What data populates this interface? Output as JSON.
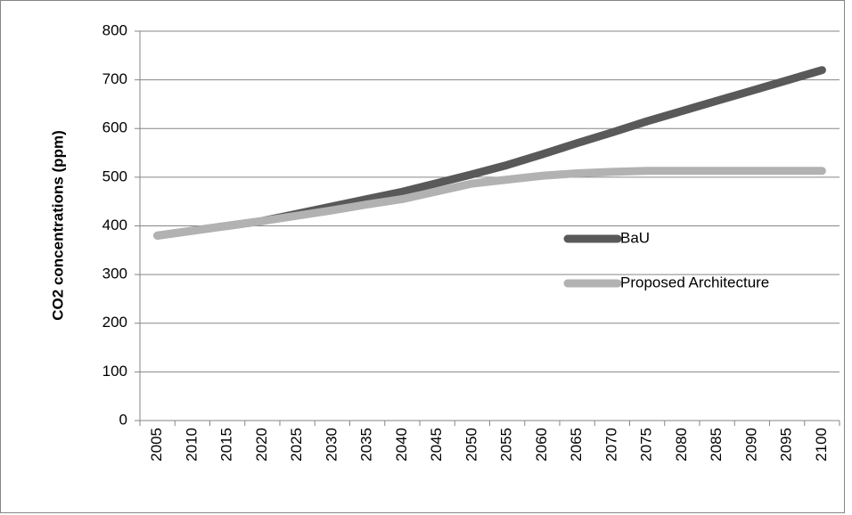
{
  "chart_data": {
    "type": "line",
    "ylabel": "CO2 concentrations  (ppm)",
    "categories": [
      "2005",
      "2010",
      "2015",
      "2020",
      "2025",
      "2030",
      "2035",
      "2040",
      "2045",
      "2050",
      "2055",
      "2060",
      "2065",
      "2070",
      "2075",
      "2080",
      "2085",
      "2090",
      "2095",
      "2100"
    ],
    "series": [
      {
        "name": "BaU",
        "color": "#595959",
        "values": [
          380,
          390,
          400,
          410,
          425,
          440,
          455,
          470,
          488,
          506,
          525,
          547,
          570,
          592,
          615,
          636,
          657,
          678,
          699,
          720
        ]
      },
      {
        "name": "Proposed Architecture",
        "color": "#b2b2b2",
        "values": [
          380,
          390,
          400,
          410,
          421,
          432,
          444,
          455,
          471,
          487,
          495,
          503,
          508,
          511,
          513,
          513,
          513,
          513,
          513,
          513
        ]
      }
    ],
    "ylim": [
      0,
      800
    ],
    "yticks": [
      0,
      100,
      200,
      300,
      400,
      500,
      600,
      700,
      800
    ],
    "grid": true,
    "legend": "right"
  }
}
